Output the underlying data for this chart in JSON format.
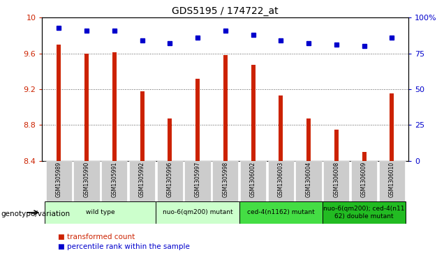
{
  "title": "GDS5195 / 174722_at",
  "samples": [
    "GSM1305989",
    "GSM1305990",
    "GSM1305991",
    "GSM1305992",
    "GSM1305996",
    "GSM1305997",
    "GSM1305998",
    "GSM1306002",
    "GSM1306003",
    "GSM1306004",
    "GSM1306008",
    "GSM1306009",
    "GSM1306010"
  ],
  "bar_values": [
    9.7,
    9.6,
    9.61,
    9.18,
    8.87,
    9.32,
    9.58,
    9.47,
    9.13,
    8.87,
    8.75,
    8.5,
    9.15
  ],
  "dot_values": [
    93,
    91,
    91,
    84,
    82,
    86,
    91,
    88,
    84,
    82,
    81,
    80,
    86
  ],
  "ylim_left": [
    8.4,
    10.0
  ],
  "ylim_right": [
    0,
    100
  ],
  "yticks_left": [
    8.4,
    8.8,
    9.2,
    9.6,
    10.0
  ],
  "ytick_labels_left": [
    "8.4",
    "8.8",
    "9.2",
    "9.6",
    "10"
  ],
  "yticks_right": [
    0,
    25,
    50,
    75,
    100
  ],
  "ytick_labels_right": [
    "0",
    "25",
    "50",
    "75",
    "100%"
  ],
  "bar_color": "#cc2200",
  "dot_color": "#0000cc",
  "grid_color": "#555555",
  "bg_color": "#ffffff",
  "groups": [
    {
      "label": "wild type",
      "indices": [
        0,
        1,
        2,
        3
      ],
      "color": "#ccffcc"
    },
    {
      "label": "nuo-6(qm200) mutant",
      "indices": [
        4,
        5,
        6
      ],
      "color": "#ccffcc"
    },
    {
      "label": "ced-4(n1162) mutant",
      "indices": [
        7,
        8,
        9
      ],
      "color": "#44dd44"
    },
    {
      "label": "nuo-6(qm200); ced-4(n11\n62) double mutant",
      "indices": [
        10,
        11,
        12
      ],
      "color": "#22bb22"
    }
  ],
  "xlabel_label": "genotype/variation",
  "legend_transformed": "transformed count",
  "legend_percentile": "percentile rank within the sample",
  "tick_bg_color": "#cccccc",
  "bar_width": 0.15
}
